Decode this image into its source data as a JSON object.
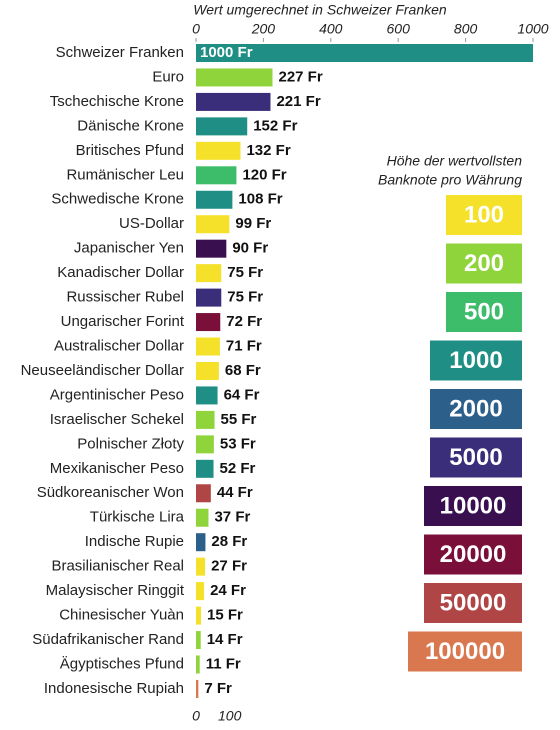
{
  "chart_data": {
    "type": "bar",
    "orientation": "horizontal",
    "x_label": "Wert umgerechnet in Schweizer Franken",
    "categories": [
      "Schweizer Franken",
      "Euro",
      "Tschechische Krone",
      "Dänische Krone",
      "Britisches Pfund",
      "Rumänischer Leu",
      "Schwedische Krone",
      "US-Dollar",
      "Japanischer Yen",
      "Kanadischer Dollar",
      "Russischer Rubel",
      "Ungarischer Forint",
      "Australischer Dollar",
      "Neuseeländischer Dollar",
      "Argentinischer Peso",
      "Israelischer Schekel",
      "Polnischer Złoty",
      "Mexikanischer Peso",
      "Südkoreanischer Won",
      "Türkische Lira",
      "Indische Rupie",
      "Brasilianischer Real",
      "Malaysischer Ringgit",
      "Chinesischer Yuàn",
      "Südafrikanischer Rand",
      "Ägyptisches Pfund",
      "Indonesische Rupiah"
    ],
    "values": [
      1000,
      227,
      221,
      152,
      132,
      120,
      108,
      99,
      90,
      75,
      75,
      72,
      71,
      68,
      64,
      55,
      53,
      52,
      44,
      37,
      28,
      27,
      24,
      15,
      14,
      11,
      7
    ],
    "value_labels": [
      "1000 Fr",
      "227 Fr",
      "221 Fr",
      "152 Fr",
      "132 Fr",
      "120 Fr",
      "108 Fr",
      "99 Fr",
      "90 Fr",
      "75 Fr",
      "75 Fr",
      "72 Fr",
      "71 Fr",
      "68 Fr",
      "64 Fr",
      "55 Fr",
      "53 Fr",
      "52 Fr",
      "44 Fr",
      "37 Fr",
      "28 Fr",
      "27 Fr",
      "24 Fr",
      "15 Fr",
      "14 Fr",
      "11 Fr",
      "7 Fr"
    ],
    "colors": [
      "#1f8f85",
      "#8fd43b",
      "#3a2d7a",
      "#1f8f85",
      "#f5e12a",
      "#3dbd6a",
      "#1f8f85",
      "#f5e12a",
      "#3a0f4f",
      "#f5e12a",
      "#3a2d7a",
      "#7a0f3a",
      "#f5e12a",
      "#f5e12a",
      "#1f8f85",
      "#8fd43b",
      "#8fd43b",
      "#1f8f85",
      "#b04545",
      "#8fd43b",
      "#2c5f8a",
      "#f5e12a",
      "#f5e12a",
      "#f5e12a",
      "#8fd43b",
      "#8fd43b",
      "#d9774f"
    ],
    "xlim": [
      0,
      1000
    ],
    "xticks": [
      0,
      200,
      400,
      600,
      800,
      1000
    ],
    "xticks_bottom": [
      0,
      100
    ],
    "legend_title": [
      "Höhe der wertvollsten",
      "Banknote pro Währung"
    ],
    "legend": [
      {
        "label": "100",
        "color": "#f5e12a"
      },
      {
        "label": "200",
        "color": "#8fd43b"
      },
      {
        "label": "500",
        "color": "#3dbd6a"
      },
      {
        "label": "1000",
        "color": "#1f8f85"
      },
      {
        "label": "2000",
        "color": "#2c5f8a"
      },
      {
        "label": "5000",
        "color": "#3a2d7a"
      },
      {
        "label": "10000",
        "color": "#3a0f4f"
      },
      {
        "label": "20000",
        "color": "#7a0f3a"
      },
      {
        "label": "50000",
        "color": "#b04545"
      },
      {
        "label": "100000",
        "color": "#d9774f"
      }
    ]
  }
}
